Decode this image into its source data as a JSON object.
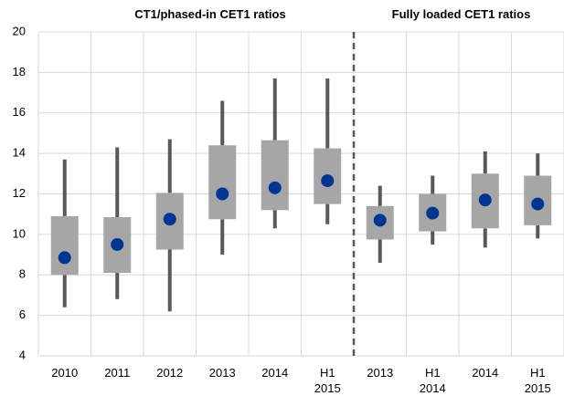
{
  "chart_data": {
    "type": "box",
    "group_titles": [
      "CT1/phased-in CET1 ratios",
      "Fully loaded CET1 ratios"
    ],
    "categories": [
      "2010",
      "2011",
      "2012",
      "2013",
      "2014",
      "H1 2015",
      "2013",
      "H1 2014",
      "2014",
      "H1 2015"
    ],
    "max": [
      13.7,
      14.3,
      14.7,
      16.6,
      17.7,
      17.7,
      12.4,
      12.9,
      14.1,
      14.0
    ],
    "q3": [
      10.9,
      10.85,
      12.05,
      14.4,
      14.65,
      14.25,
      11.4,
      12.0,
      13.0,
      12.9
    ],
    "mid": [
      8.85,
      9.5,
      10.75,
      12.0,
      12.3,
      12.65,
      10.7,
      11.05,
      11.7,
      11.5
    ],
    "q1": [
      8.0,
      8.1,
      9.25,
      10.75,
      11.2,
      11.5,
      9.75,
      10.15,
      10.3,
      10.45
    ],
    "min": [
      6.4,
      6.8,
      6.2,
      9.0,
      10.3,
      10.5,
      8.6,
      9.5,
      9.35,
      9.8
    ],
    "ylim": [
      4,
      20
    ],
    "yticks": [
      4,
      6,
      8,
      10,
      12,
      14,
      16,
      18,
      20
    ],
    "grid": true,
    "box_color": "#a6a6a6",
    "whisker_color": "#595959",
    "dot_color": "#003594"
  }
}
